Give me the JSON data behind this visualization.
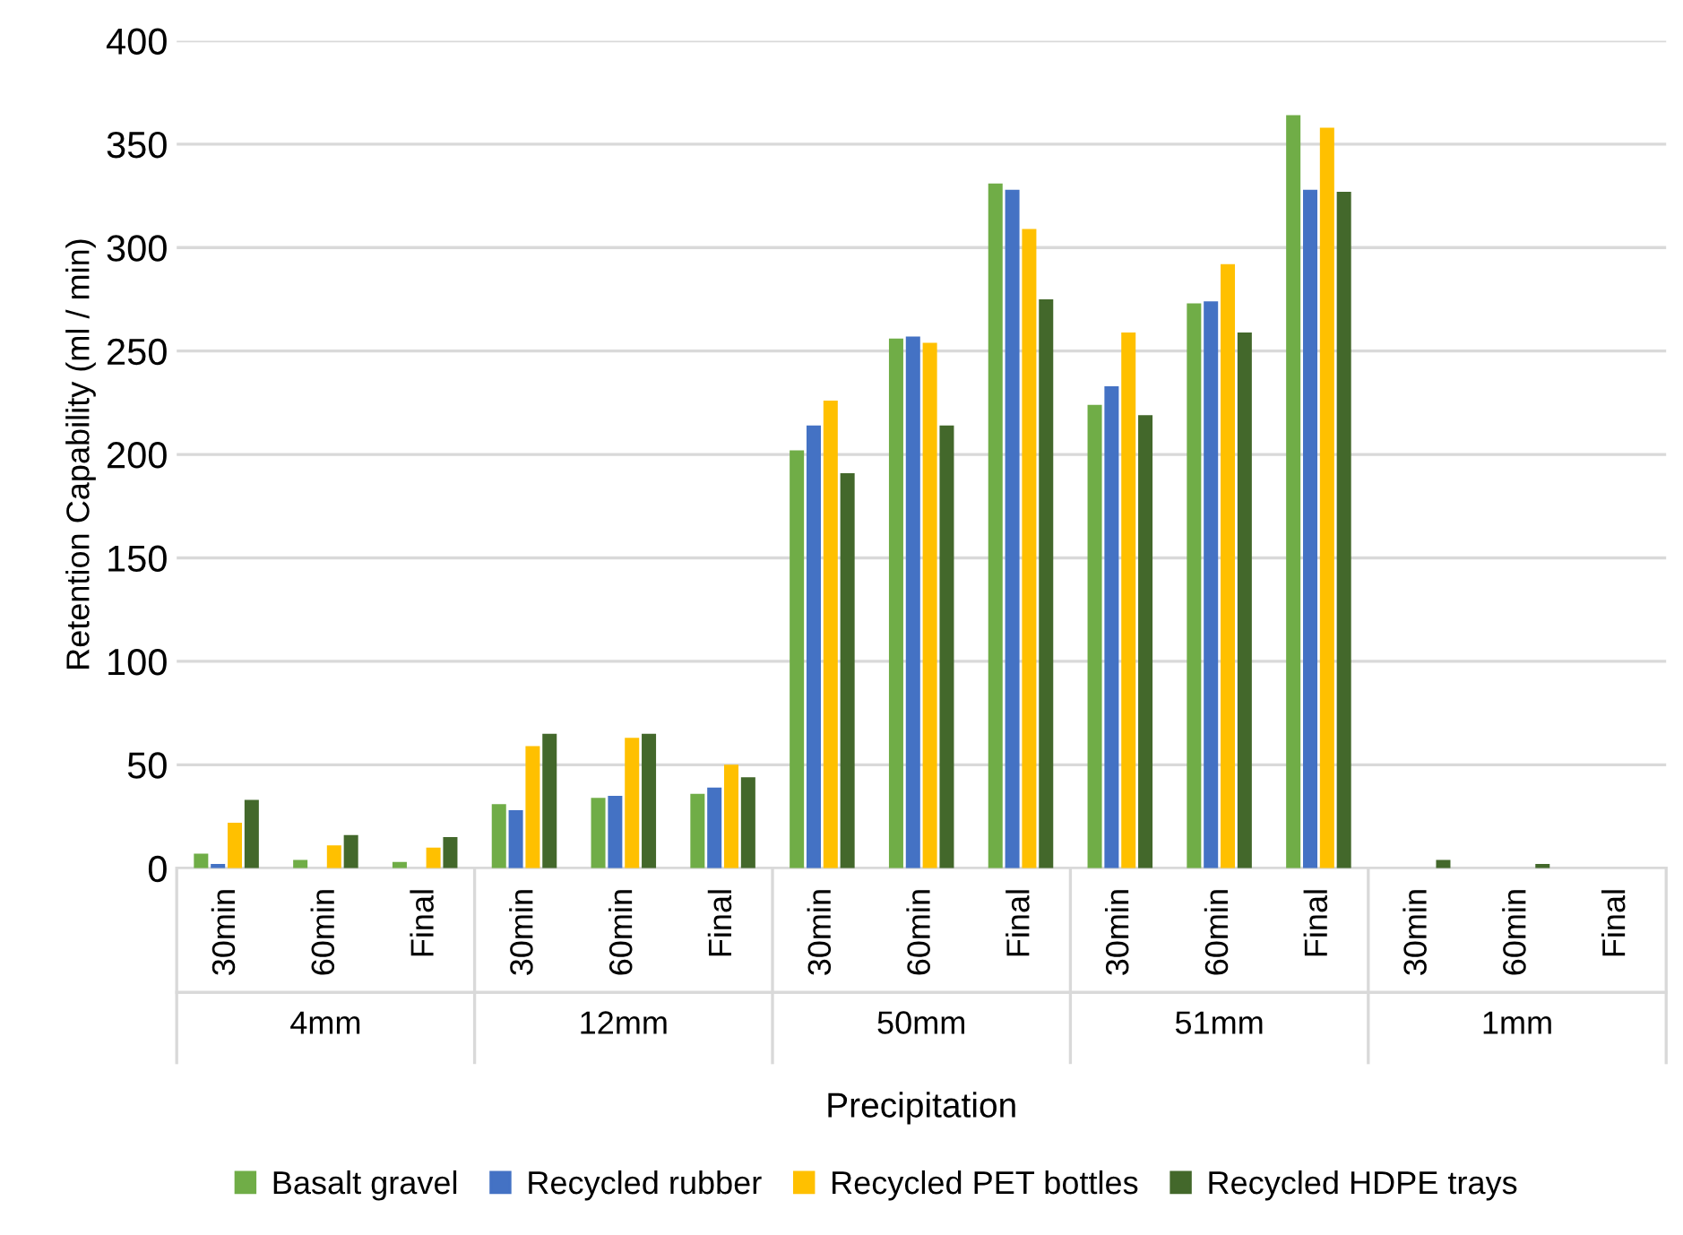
{
  "chart_data": {
    "type": "bar",
    "xlabel": "Precipitation",
    "ylabel": "Retention Capability (ml / min)",
    "categories": [
      "30min",
      "60min",
      "Final",
      "30min",
      "60min",
      "Final",
      "30min",
      "60min",
      "Final",
      "30min",
      "60min",
      "Final",
      "30min",
      "60min",
      "Final"
    ],
    "series": [
      {
        "name": "Basalt gravel",
        "color": "#70ad47",
        "values": [
          7,
          4,
          3,
          31,
          34,
          36,
          202,
          256,
          331,
          224,
          273,
          364,
          0,
          0,
          0
        ]
      },
      {
        "name": "Recycled rubber",
        "color": "#4472c4",
        "values": [
          2,
          0,
          0,
          28,
          35,
          39,
          214,
          257,
          328,
          233,
          274,
          328,
          0,
          0,
          0
        ]
      },
      {
        "name": "Recycled PET bottles",
        "color": "#ffc000",
        "values": [
          22,
          11,
          10,
          59,
          63,
          50,
          226,
          254,
          309,
          259,
          292,
          358,
          0,
          0,
          0
        ]
      },
      {
        "name": "Recycled HDPE trays",
        "color": "#43682b",
        "values": [
          33,
          16,
          15,
          65,
          65,
          44,
          191,
          214,
          275,
          219,
          259,
          327,
          4,
          2,
          0
        ]
      }
    ],
    "annotations": [
      "4mm",
      "12mm",
      "50mm",
      "51mm",
      "1mm"
    ],
    "ylim": [
      0,
      400
    ],
    "yticks": [
      0,
      50,
      100,
      150,
      200,
      250,
      300,
      350,
      400
    ],
    "grid": "y",
    "legend": "bottom"
  }
}
